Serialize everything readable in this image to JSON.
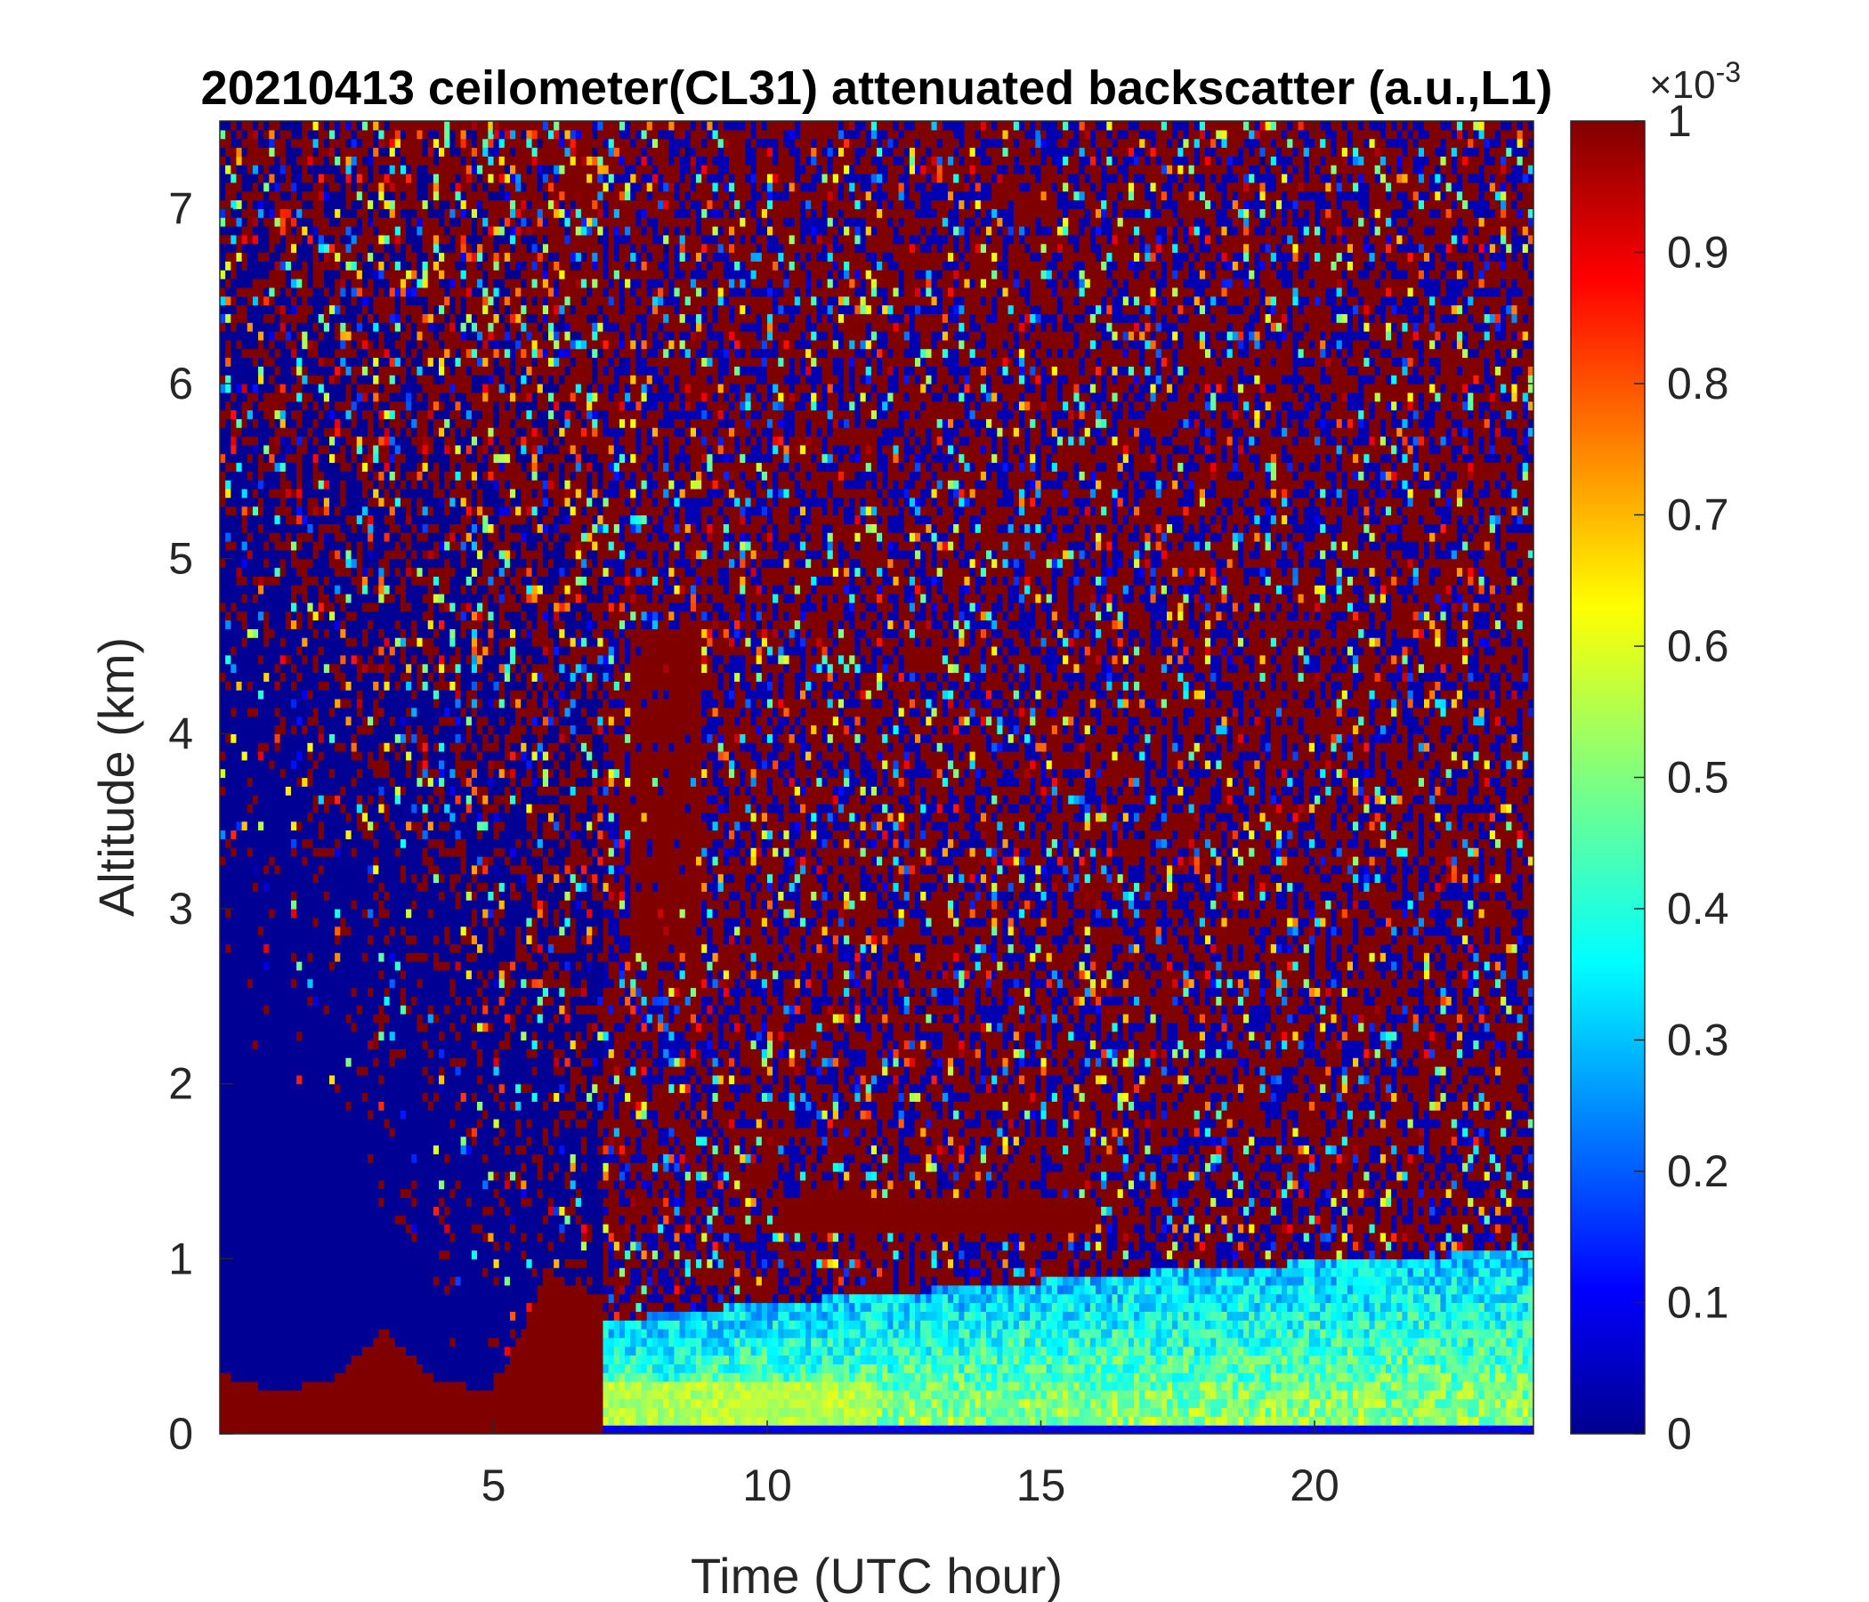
{
  "chart_data": {
    "type": "heatmap",
    "title": "20210413 ceilometer(CL31) attenuated backscatter (a.u.,L1)",
    "xlabel": "Time (UTC hour)",
    "ylabel": "Altitude (km)",
    "xlim": [
      0,
      24
    ],
    "ylim": [
      0,
      7.5
    ],
    "x_ticks": [
      "5",
      "10",
      "15",
      "20"
    ],
    "x_tick_values": [
      5,
      10,
      15,
      20
    ],
    "y_ticks": [
      "0",
      "1",
      "2",
      "3",
      "4",
      "5",
      "6",
      "7"
    ],
    "y_tick_values": [
      0,
      1,
      2,
      3,
      4,
      5,
      6,
      7
    ],
    "colorbar": {
      "colormap": "jet",
      "range": [
        0,
        1
      ],
      "ticks": [
        "0",
        "0.1",
        "0.2",
        "0.3",
        "0.4",
        "0.5",
        "0.6",
        "0.7",
        "0.8",
        "0.9",
        "1"
      ],
      "tick_values": [
        0,
        0.1,
        0.2,
        0.3,
        0.4,
        0.5,
        0.6,
        0.7,
        0.8,
        0.9,
        1.0
      ],
      "exponent_label": "×10",
      "exponent_power": "-3"
    },
    "features": {
      "surface_layer_top_km": [
        {
          "time": 0.0,
          "alt": 0.35
        },
        {
          "time": 1.0,
          "alt": 0.25
        },
        {
          "time": 2.0,
          "alt": 0.3
        },
        {
          "time": 3.0,
          "alt": 0.6
        },
        {
          "time": 4.0,
          "alt": 0.3
        },
        {
          "time": 5.0,
          "alt": 0.25
        },
        {
          "time": 6.0,
          "alt": 0.9
        },
        {
          "time": 7.0,
          "alt": 0.8
        }
      ],
      "boundary_layer_top_km": [
        {
          "time": 7.0,
          "alt": 0.65
        },
        {
          "time": 10.0,
          "alt": 0.75
        },
        {
          "time": 14.0,
          "alt": 0.85
        },
        {
          "time": 18.0,
          "alt": 0.95
        },
        {
          "time": 24.0,
          "alt": 1.05
        }
      ],
      "cloud_layer": {
        "time_start": 10.2,
        "time_end": 16.0,
        "alt_center": 1.25
      }
    }
  }
}
